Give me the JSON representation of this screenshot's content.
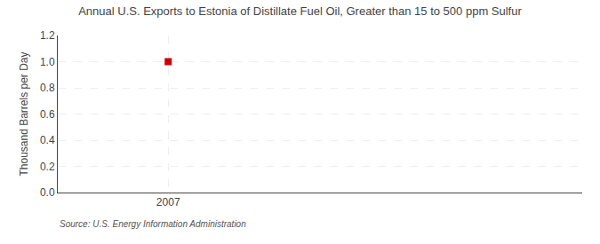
{
  "chart_data": {
    "type": "scatter",
    "title": "Annual U.S. Exports to Estonia of Distillate Fuel Oil, Greater than 15 to 500 ppm Sulfur",
    "ylabel": "Thousand Barrels per Day",
    "annotations": [
      "Source: U.S. Energy Information Administration"
    ],
    "x": [
      2007
    ],
    "values": [
      1.0
    ],
    "color": "#cc0000",
    "marker": "square",
    "xlim": [
      2006.6,
      2008.5
    ],
    "xticks": [
      2007
    ],
    "ylim": [
      0.0,
      1.2
    ],
    "yticks": [
      {
        "value": 0.0,
        "label": "0.0"
      },
      0.2,
      0.4,
      0.6,
      0.8,
      {
        "value": 1.0,
        "label": "1.0"
      },
      1.2
    ],
    "grid": true
  }
}
